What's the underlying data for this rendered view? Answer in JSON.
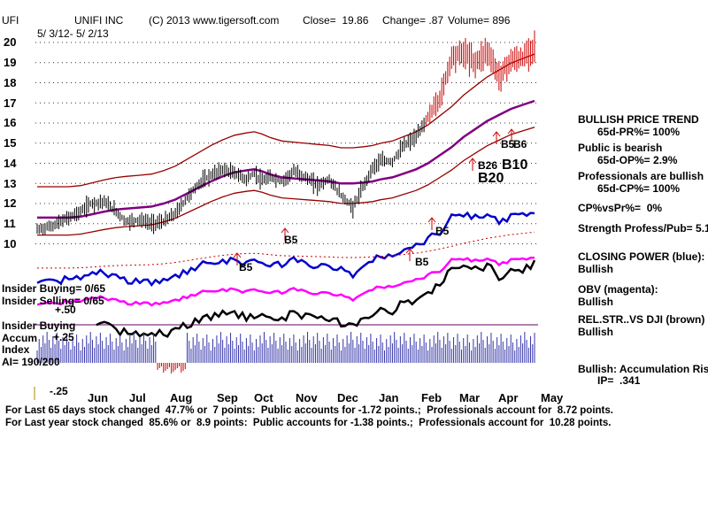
{
  "chart_data": {
    "type": "line",
    "title": {
      "symbol": "UFI",
      "company": "UNIFI INC",
      "copyright": "(C) 2013 www.tigersoft.com",
      "close": "Close=  19.86",
      "change": "Change= .87",
      "volume": "Volume= 896",
      "daterange": "5/ 3/12- 5/ 2/13"
    },
    "ylim": [
      9.5,
      20.5
    ],
    "yticks": [
      "20",
      "19",
      "18",
      "17",
      "16",
      "15",
      "14",
      "13",
      "12",
      "11",
      "10"
    ],
    "months": [
      "Jun",
      "Jul",
      "Aug",
      "Sep",
      "Oct",
      "Nov",
      "Dec",
      "Jan",
      "Feb",
      "Mar",
      "Apr",
      "May"
    ],
    "x": [
      0,
      8,
      16,
      22,
      27,
      34,
      40,
      45,
      52,
      58,
      64,
      70,
      76,
      82,
      88,
      94,
      100,
      106,
      110,
      114,
      118,
      124,
      130,
      136,
      142,
      148,
      154,
      160,
      166,
      170,
      174,
      180,
      186,
      192,
      198,
      204,
      210,
      216,
      222,
      228,
      234,
      240,
      246,
      252
    ],
    "price": [
      10.7,
      10.9,
      11.3,
      11.6,
      12.0,
      12.1,
      11.6,
      11.1,
      11.2,
      11.0,
      11.1,
      11.5,
      12.3,
      13.0,
      13.4,
      13.7,
      13.5,
      13.2,
      13.5,
      13.1,
      13.3,
      13.1,
      13.6,
      13.3,
      12.9,
      13.2,
      12.4,
      11.8,
      13.0,
      13.8,
      14.1,
      14.1,
      14.9,
      15.3,
      16.3,
      17.2,
      19.3,
      19.5,
      19.0,
      19.6,
      18.3,
      19.1,
      19.2,
      19.86
    ],
    "ma": [
      11.3,
      11.3,
      11.3,
      11.35,
      11.45,
      11.6,
      11.7,
      11.75,
      11.8,
      11.85,
      12.0,
      12.2,
      12.5,
      12.8,
      13.1,
      13.35,
      13.55,
      13.65,
      13.7,
      13.6,
      13.45,
      13.3,
      13.25,
      13.2,
      13.15,
      13.1,
      13.0,
      13.0,
      13.05,
      13.1,
      13.2,
      13.3,
      13.5,
      13.7,
      14.0,
      14.4,
      14.8,
      15.3,
      15.7,
      16.1,
      16.4,
      16.7,
      16.9,
      17.1
    ],
    "band_pct": 8.5,
    "signals": [
      "B5",
      "B5",
      "B5",
      "B5",
      "B26",
      "B10",
      "B20",
      "B5",
      "B6"
    ],
    "indicators": {
      "closing_power": "CLOSING POWER (blue):",
      "obv": "OBV (magenta):",
      "rel_strength": "REL.STR..VS DJI (brown)"
    },
    "accum_axis": [
      "+.50",
      "+.25",
      "-.25"
    ],
    "accum_labels": [
      "Insider Buying",
      "Accum",
      "Index"
    ]
  },
  "left_labels": {
    "insider_buying": "Insider Buying= 0/65",
    "insider_selling": "Insider Selling= 0/65",
    "ai": "AI= 190/200"
  },
  "right_panel": {
    "trend_title": "BULLISH PRICE TREND",
    "pr": "65d-PR%= 100%",
    "public": "Public is bearish",
    "op": "65d-OP%= 2.9%",
    "pros": "Professionals are bullish",
    "cp": "65d-CP%= 100%",
    "cpvspr": "CP%vsPr%=  0%",
    "strength": "Strength Profess/Pub= 5.1",
    "closing_power": "CLOSING POWER (blue):",
    "closing_power_val": "Bullish",
    "obv": "OBV (magenta):",
    "obv_val": "Bullish",
    "relstr": "REL.STR..VS DJI (brown)",
    "relstr_val": "Bullish",
    "accum": "Bullish: Accumulation Rising",
    "ip": "IP=  .341"
  },
  "footer": {
    "line1": "For Last 65 days stock changed  47.7% or  7 points:  Public accounts for -1.72 points.;  Professionals account for  8.72 points.",
    "line2": "For Last year stock changed  85.6% or  8.9 points:  Public accounts for -1.38 points.;  Professionals account for  10.28 points."
  },
  "colors": {
    "price": "#cc0000",
    "band": "#990000",
    "ma": "#800080",
    "closing_power": "#0000cc",
    "obv": "#ff00ff",
    "rel": "#000000",
    "accum": "#3333aa",
    "grid": "#333333"
  }
}
